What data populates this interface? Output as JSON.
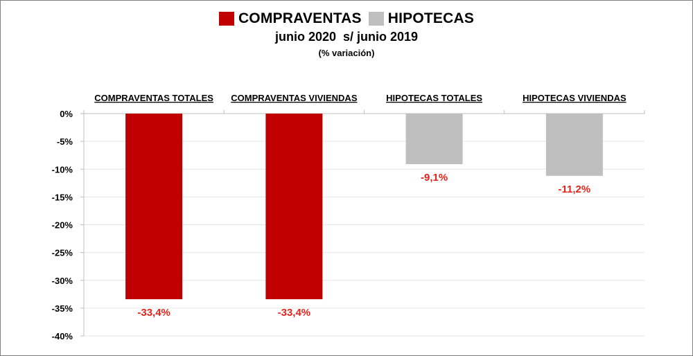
{
  "legend": [
    {
      "label": "COMPRAVENTAS",
      "color": "#c00000"
    },
    {
      "label": "HIPOTECAS",
      "color": "#bfbfbf"
    }
  ],
  "subtitle": "junio 2020  s/ junio 2019",
  "note": "(% variación)",
  "chart_data": {
    "type": "bar",
    "categories": [
      "COMPRAVENTAS TOTALES",
      "COMPRAVENTAS VIVIENDAS",
      "HIPOTECAS TOTALES",
      "HIPOTECAS VIVIENDAS"
    ],
    "values": [
      -33.4,
      -33.4,
      -9.1,
      -11.2
    ],
    "data_labels": [
      "-33,4%",
      "-33,4%",
      "-9,1%",
      "-11,2%"
    ],
    "bar_colors": [
      "#c00000",
      "#c00000",
      "#bfbfbf",
      "#bfbfbf"
    ],
    "ylim": [
      -40,
      0
    ],
    "yticks": [
      0,
      -5,
      -10,
      -15,
      -20,
      -25,
      -30,
      -35,
      -40
    ],
    "ytick_labels": [
      "0%",
      "-5%",
      "-10%",
      "-15%",
      "-20%",
      "-25%",
      "-30%",
      "-35%",
      "-40%"
    ],
    "grid": true,
    "legend_position": "top-center",
    "label_color": "#e8221b"
  }
}
